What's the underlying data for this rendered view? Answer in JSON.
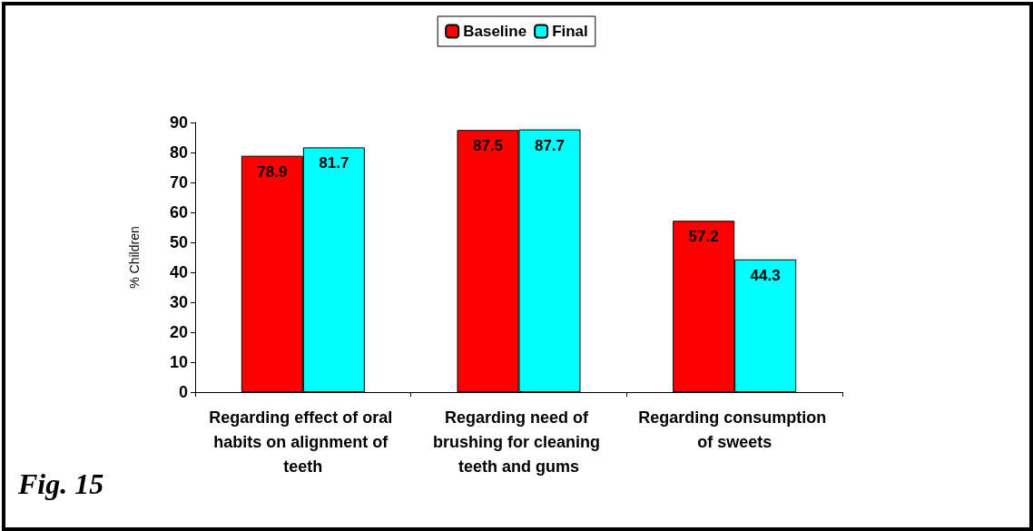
{
  "chart_data": {
    "type": "bar",
    "ylabel": "% Children",
    "categories": [
      "Regarding effect of oral habits on alignment of teeth",
      "Regarding need of brushing for cleaning teeth and gums",
      "Regarding consumption of sweets"
    ],
    "series": [
      {
        "name": "Baseline",
        "color": "#ff0000",
        "values": [
          78.9,
          87.5,
          57.2
        ]
      },
      {
        "name": "Final",
        "color": "#00ffff",
        "values": [
          81.7,
          87.7,
          44.3
        ]
      }
    ],
    "ylim": [
      0,
      90
    ],
    "yticks": [
      0,
      10,
      20,
      30,
      40,
      50,
      60,
      70,
      80,
      90
    ],
    "grid": false,
    "legend": "top",
    "data_labels": true,
    "annotations": [
      "Fig. 15"
    ]
  }
}
